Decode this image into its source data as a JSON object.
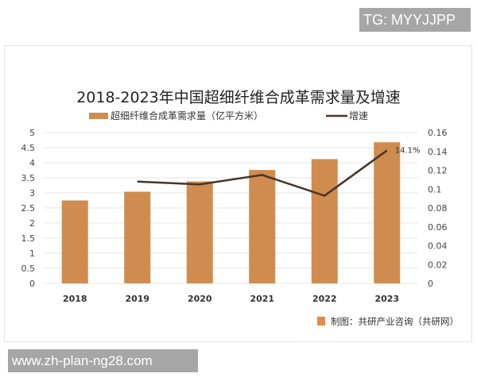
{
  "watermarks": {
    "top_right": "TG: MYYJJPP",
    "bottom_left": "www.zh-plan-ng28.com"
  },
  "chart_data": {
    "type": "bar",
    "title": "2018-2023年中国超细纤维合成革需求量及增速",
    "categories": [
      "2018",
      "2019",
      "2020",
      "2021",
      "2022",
      "2023"
    ],
    "series": [
      {
        "name": "超细纤维合成革需求量（亿平方米）",
        "type": "bar",
        "axis": "left",
        "color": "#d08c4f",
        "values": [
          2.75,
          3.04,
          3.38,
          3.76,
          4.12,
          4.68
        ]
      },
      {
        "name": "增速",
        "type": "line",
        "axis": "right",
        "color": "#4a3328",
        "values": [
          null,
          0.108,
          0.105,
          0.115,
          0.093,
          0.141
        ]
      }
    ],
    "annotations": [
      {
        "category": "2023",
        "series": "增速",
        "text": "14.1%"
      }
    ],
    "left_axis": {
      "ylim": [
        0,
        5
      ],
      "ticks": [
        "0",
        "0.5",
        "1",
        "1.5",
        "2",
        "2.5",
        "3",
        "3.5",
        "4",
        "4.5",
        "5"
      ]
    },
    "right_axis": {
      "ylim": [
        0,
        0.16
      ],
      "ticks": [
        "0",
        "0.02",
        "0.04",
        "0.06",
        "0.08",
        "0.1",
        "0.12",
        "0.14",
        "0.16"
      ]
    },
    "grid": true,
    "legend_placement": "top-center",
    "source": "制图：共研产业咨询（共研网）"
  }
}
